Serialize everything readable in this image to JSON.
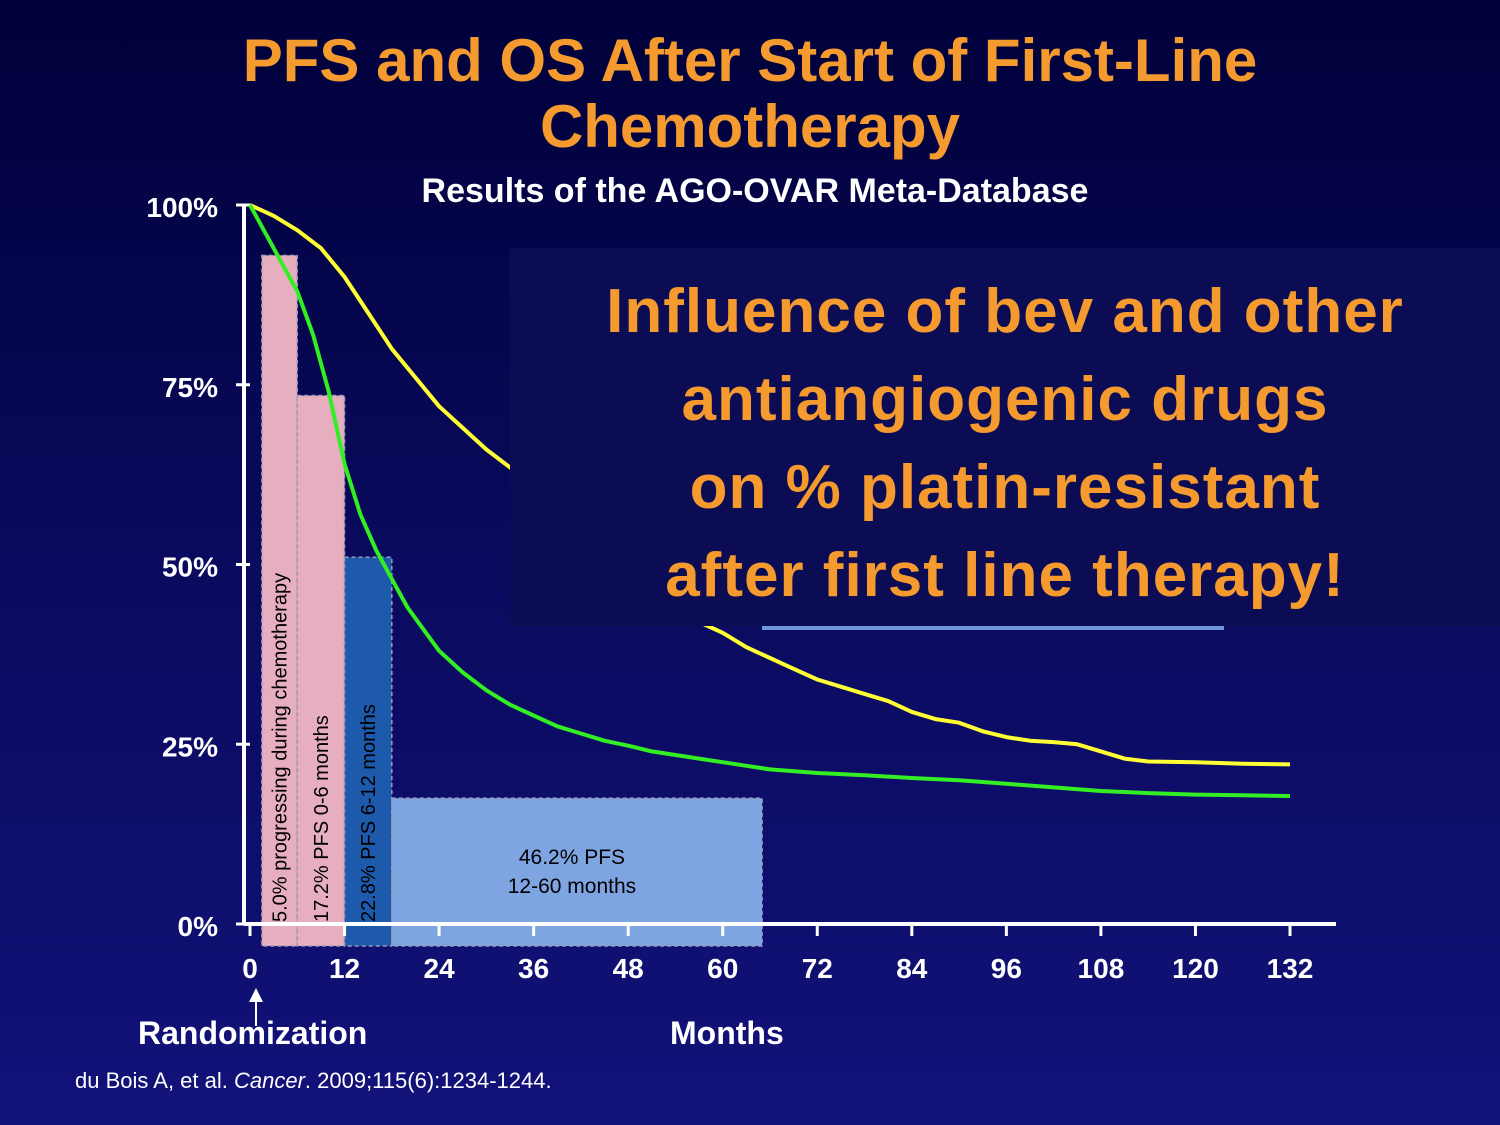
{
  "slide": {
    "title_line1": "PFS and OS After Start of First-Line",
    "title_line2": "Chemotherapy",
    "subtitle": "Results of the AGO-OVAR Meta-Database",
    "overlay_lines": [
      "Influence of bev and other",
      "antiangiogenic drugs",
      "on % platin-resistant",
      "after first line therapy!"
    ],
    "randomization_label": "Randomization",
    "months_label": "Months",
    "citation_authors": "du Bois A, et al. ",
    "citation_journal": "Cancer",
    "citation_rest": ". 2009;115(6):1234-1244."
  },
  "chart_data": {
    "type": "line",
    "xlabel": "Months",
    "ylabel": "",
    "xlim": [
      0,
      132
    ],
    "ylim": [
      0,
      100
    ],
    "x_ticks": [
      0,
      12,
      24,
      36,
      48,
      60,
      72,
      84,
      96,
      108,
      120,
      132
    ],
    "y_ticks": [
      "0%",
      "25%",
      "50%",
      "75%",
      "100%"
    ],
    "y_tick_values": [
      0,
      25,
      50,
      75,
      100
    ],
    "series": [
      {
        "color": "#ffff33",
        "points": [
          [
            0,
            100
          ],
          [
            3,
            98.5
          ],
          [
            6,
            96.5
          ],
          [
            9,
            94
          ],
          [
            12,
            90
          ],
          [
            15,
            85
          ],
          [
            18,
            80
          ],
          [
            21,
            76
          ],
          [
            24,
            72
          ],
          [
            27,
            69
          ],
          [
            30,
            66
          ],
          [
            33,
            63.5
          ],
          [
            36,
            61
          ],
          [
            39,
            58
          ],
          [
            42,
            55
          ],
          [
            45,
            52
          ],
          [
            48,
            49
          ],
          [
            51,
            46.5
          ],
          [
            54,
            44
          ],
          [
            57,
            42
          ],
          [
            60,
            40.5
          ],
          [
            63,
            38.5
          ],
          [
            66,
            37
          ],
          [
            69,
            35.5
          ],
          [
            72,
            34
          ],
          [
            75,
            33
          ],
          [
            78,
            32
          ],
          [
            81,
            31
          ],
          [
            84,
            29.5
          ],
          [
            87,
            28.5
          ],
          [
            90,
            28
          ],
          [
            93,
            26.8
          ],
          [
            96,
            26
          ],
          [
            99,
            25.5
          ],
          [
            102,
            25.3
          ],
          [
            105,
            25
          ],
          [
            108,
            24
          ],
          [
            111,
            23
          ],
          [
            114,
            22.6
          ],
          [
            120,
            22.5
          ],
          [
            126,
            22.3
          ],
          [
            132,
            22.2
          ]
        ]
      },
      {
        "color": "#33ee22",
        "points": [
          [
            0,
            100
          ],
          [
            2,
            96
          ],
          [
            4,
            92
          ],
          [
            6,
            88
          ],
          [
            8,
            82
          ],
          [
            10,
            74
          ],
          [
            12,
            64
          ],
          [
            14,
            57
          ],
          [
            16,
            52
          ],
          [
            18,
            48
          ],
          [
            20,
            44
          ],
          [
            22,
            41
          ],
          [
            24,
            38
          ],
          [
            27,
            35
          ],
          [
            30,
            32.5
          ],
          [
            33,
            30.5
          ],
          [
            36,
            29
          ],
          [
            39,
            27.5
          ],
          [
            42,
            26.5
          ],
          [
            45,
            25.5
          ],
          [
            48,
            24.8
          ],
          [
            51,
            24
          ],
          [
            54,
            23.5
          ],
          [
            57,
            23
          ],
          [
            60,
            22.5
          ],
          [
            63,
            22
          ],
          [
            66,
            21.5
          ],
          [
            72,
            21
          ],
          [
            78,
            20.7
          ],
          [
            84,
            20.3
          ],
          [
            90,
            20
          ],
          [
            96,
            19.5
          ],
          [
            102,
            19
          ],
          [
            108,
            18.5
          ],
          [
            114,
            18.2
          ],
          [
            120,
            18
          ],
          [
            126,
            17.9
          ],
          [
            132,
            17.8
          ]
        ]
      }
    ],
    "bars": [
      {
        "x0": 1.5,
        "x1": 6,
        "top": 93,
        "color": "#e6aebe",
        "label": "5.0%  progressing during chemotherapy"
      },
      {
        "x0": 6,
        "x1": 12,
        "top": 73.5,
        "color": "#e6aebe",
        "label": "17.2%  PFS 0-6 months"
      },
      {
        "x0": 12,
        "x1": 18,
        "top": 51,
        "color": "#1d5aac",
        "label": "22.8%  PFS 6-12 months"
      },
      {
        "x0": 18,
        "x1": 65,
        "top": 17.5,
        "color": "#7ea5e2",
        "label_line1": "46.2%  PFS",
        "label_line2": "12-60 months"
      }
    ]
  }
}
